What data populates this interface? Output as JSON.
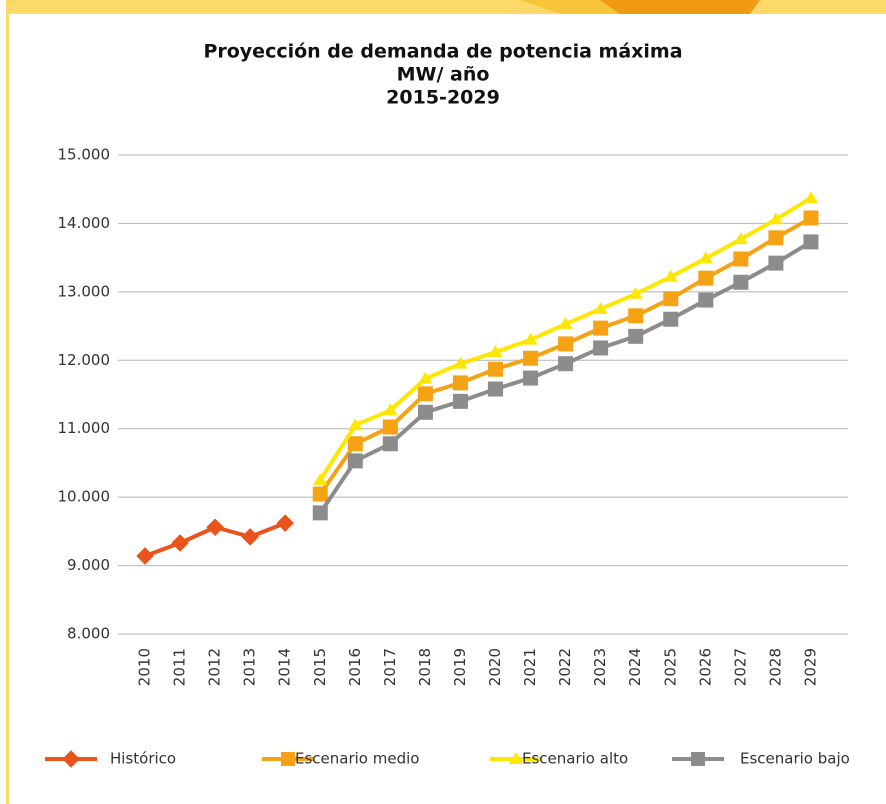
{
  "chart_data": {
    "type": "line",
    "title": [
      "Proyección de demanda de potencia máxima",
      "MW/ año",
      "2015-2029"
    ],
    "categories": [
      "2010",
      "2011",
      "2012",
      "2013",
      "2014",
      "2015",
      "2016",
      "2017",
      "2018",
      "2019",
      "2020",
      "2021",
      "2022",
      "2023",
      "2024",
      "2025",
      "2026",
      "2027",
      "2028",
      "2029"
    ],
    "series": [
      {
        "name": "Histórico",
        "color": "#e8541c",
        "marker": "diamond",
        "values": [
          9140,
          9330,
          9560,
          9420,
          9620,
          null,
          null,
          null,
          null,
          null,
          null,
          null,
          null,
          null,
          null,
          null,
          null,
          null,
          null,
          null
        ]
      },
      {
        "name": "Escenario medio",
        "color": "#f5a214",
        "marker": "square",
        "values": [
          null,
          null,
          null,
          null,
          null,
          10045,
          10780,
          11025,
          11510,
          11670,
          11870,
          12030,
          12240,
          12470,
          12650,
          12900,
          13200,
          13480,
          13790,
          14080
        ]
      },
      {
        "name": "Escenario alto",
        "color": "#ffe600",
        "marker": "triangle",
        "values": [
          null,
          null,
          null,
          null,
          null,
          10250,
          11050,
          11270,
          11730,
          11950,
          12120,
          12300,
          12530,
          12750,
          12970,
          13220,
          13490,
          13770,
          14060,
          14370
        ]
      },
      {
        "name": "Escenario bajo",
        "color": "#8c8c8c",
        "marker": "square",
        "values": [
          null,
          null,
          null,
          null,
          null,
          9770,
          10530,
          10780,
          11240,
          11400,
          11580,
          11740,
          11950,
          12180,
          12350,
          12600,
          12880,
          13140,
          13420,
          13730
        ]
      }
    ],
    "ylim": [
      8000,
      15000
    ],
    "yticks": [
      {
        "value": 8000,
        "label": "8.000"
      },
      {
        "value": 9000,
        "label": "9.000"
      },
      {
        "value": 10000,
        "label": "10.000"
      },
      {
        "value": 11000,
        "label": "11.000"
      },
      {
        "value": 12000,
        "label": "12.000"
      },
      {
        "value": 13000,
        "label": "13.000"
      },
      {
        "value": 14000,
        "label": "14.000"
      },
      {
        "value": 15000,
        "label": "15.000"
      }
    ],
    "grid": true,
    "legend": "bottom"
  }
}
